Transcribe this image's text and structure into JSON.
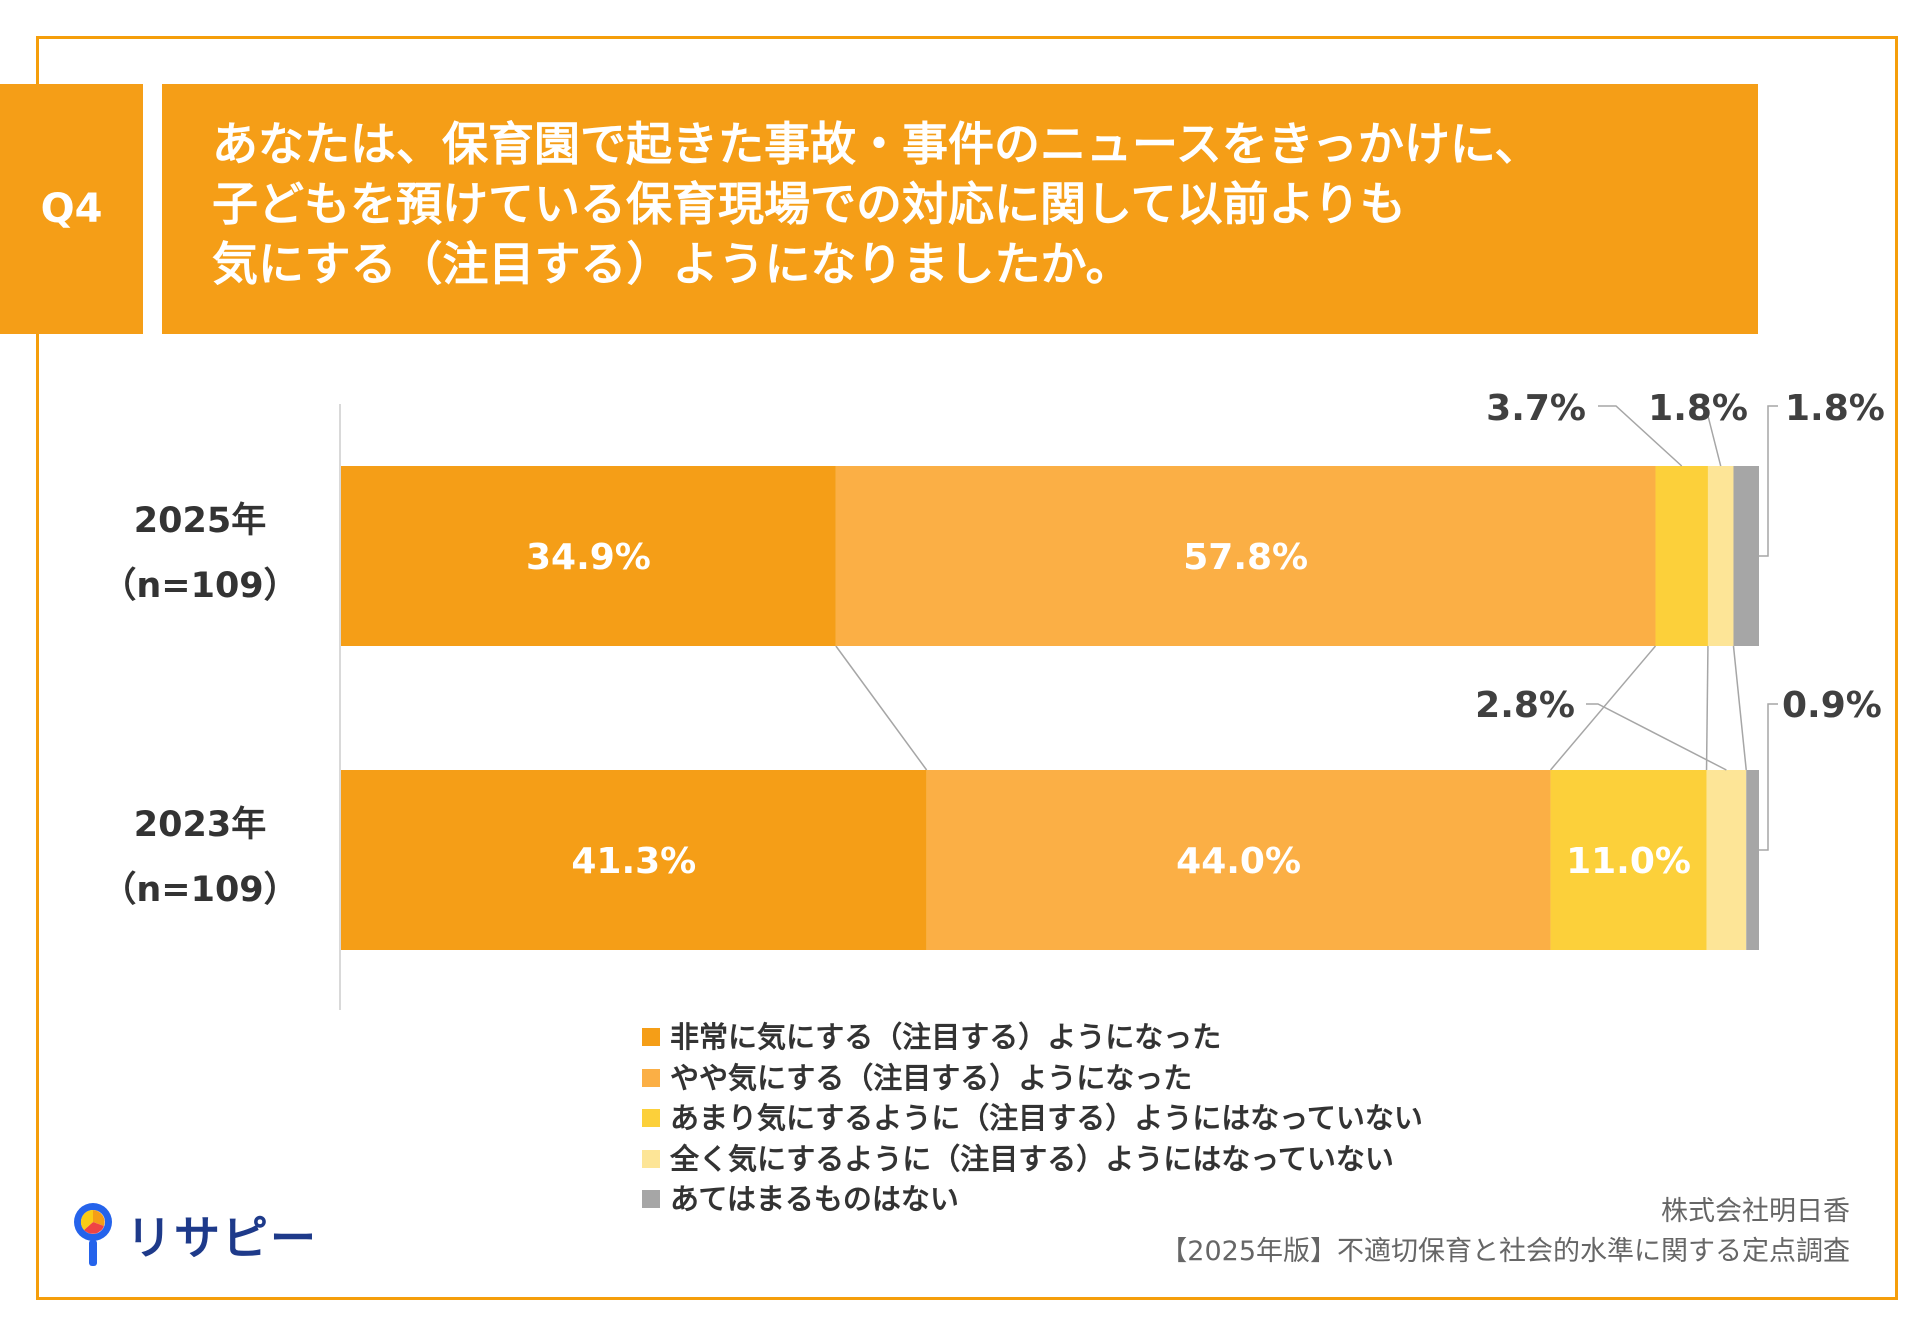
{
  "question": {
    "number": "Q4",
    "lines": [
      "あなたは、保育園で起きた事故・事件のニュースをきっかけに、",
      "子どもを預けている保育現場での対応に関して以前よりも",
      "気にする（注目する）ようになりましたか。"
    ]
  },
  "colors": {
    "accent": "#f59e17",
    "frame": "#f59e0b",
    "series": [
      "#f59e17",
      "#fbaf45",
      "#fcd03a",
      "#fde597",
      "#a6a6a6"
    ]
  },
  "chart_data": {
    "type": "bar",
    "orientation": "horizontal-stacked-100",
    "categories": [
      {
        "year": "2025年",
        "n": "（n=109）"
      },
      {
        "year": "2023年",
        "n": "（n=109）"
      }
    ],
    "series": [
      {
        "name": "非常に気にする（注目する）ようになった",
        "values": [
          34.9,
          41.3
        ],
        "labels": [
          "34.9%",
          "41.3%"
        ]
      },
      {
        "name": "やや気にする（注目する）ようになった",
        "values": [
          57.8,
          44.0
        ],
        "labels": [
          "57.8%",
          "44.0%"
        ]
      },
      {
        "name": "あまり気にするように（注目する）ようにはなっていない",
        "values": [
          3.7,
          11.0
        ],
        "labels": [
          "3.7%",
          "11.0%"
        ]
      },
      {
        "name": "全く気にするように（注目する）ようにはなっていない",
        "values": [
          1.8,
          2.8
        ],
        "labels": [
          "1.8%",
          "2.8%"
        ]
      },
      {
        "name": "あてはまるものはない",
        "values": [
          1.8,
          0.9
        ],
        "labels": [
          "1.8%",
          "0.9%"
        ]
      }
    ],
    "xlim": [
      0,
      100
    ],
    "grid": false,
    "legend_position": "bottom"
  },
  "credit": {
    "company": "株式会社明日香",
    "survey": "【2025年版】不適切保育と社会的水準に関する定点調査"
  },
  "logo": {
    "text": "リサピー"
  }
}
